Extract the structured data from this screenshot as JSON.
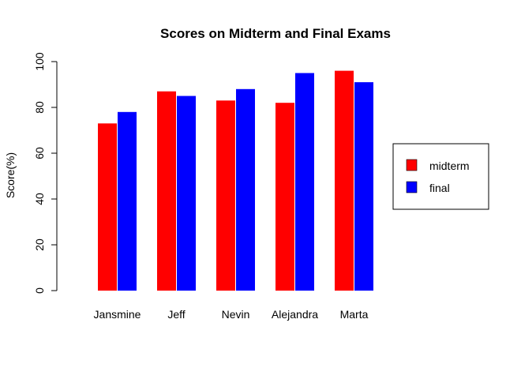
{
  "chart_data": {
    "type": "bar",
    "title": "Scores on Midterm and Final Exams",
    "xlabel": "",
    "ylabel": "Score(%)",
    "ylim": [
      0,
      100
    ],
    "yticks": [
      "0",
      "20",
      "40",
      "60",
      "80",
      "100"
    ],
    "categories": [
      "Jansmine",
      "Jeff",
      "Nevin",
      "Alejandra",
      "Marta"
    ],
    "series": [
      {
        "name": "midterm",
        "color": "#ff0000",
        "values": [
          73,
          87,
          83,
          82,
          96
        ]
      },
      {
        "name": "final",
        "color": "#0000ff",
        "values": [
          78,
          85,
          88,
          95,
          91
        ]
      }
    ],
    "grid": false,
    "legend_position": "right"
  }
}
